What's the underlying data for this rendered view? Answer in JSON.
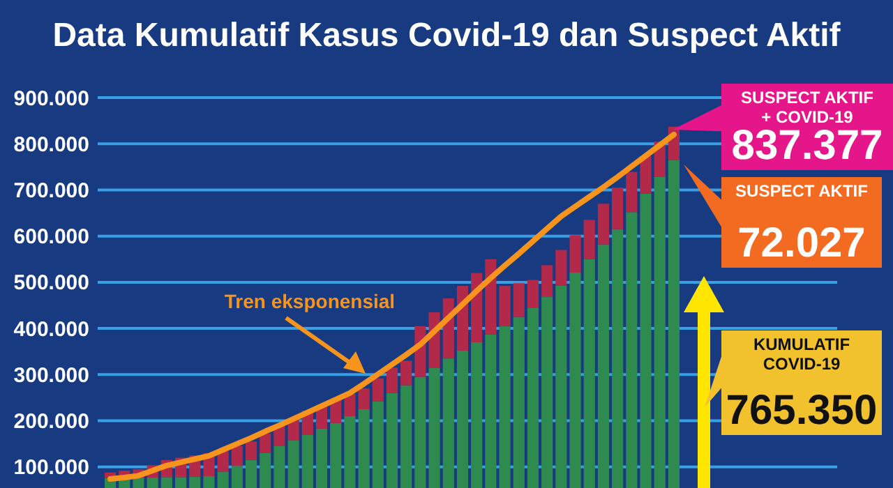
{
  "chart_data": {
    "type": "bar",
    "title": "Data Kumulatif Kasus Covid-19 dan Suspect Aktif",
    "stacked": true,
    "grid": "y",
    "tick_labels": "y",
    "categories": [
      null,
      null,
      null,
      null,
      null,
      null,
      null,
      null,
      null,
      null,
      null,
      null,
      null,
      null,
      null,
      null,
      null,
      null,
      null,
      null,
      null,
      null,
      null,
      null,
      null,
      null,
      null,
      null,
      null,
      null,
      null,
      null,
      null,
      null,
      null,
      null,
      null,
      null,
      null,
      null,
      null
    ],
    "ylim": [
      0,
      900000
    ],
    "yticks": [
      {
        "value": 100000,
        "label": "100.000"
      },
      {
        "value": 200000,
        "label": "200.000"
      },
      {
        "value": 300000,
        "label": "300.000"
      },
      {
        "value": 400000,
        "label": "400.000"
      },
      {
        "value": 500000,
        "label": "500.000"
      },
      {
        "value": 600000,
        "label": "600.000"
      },
      {
        "value": 700000,
        "label": "700.000"
      },
      {
        "value": 800000,
        "label": "800.000"
      },
      {
        "value": 900000,
        "label": "900.000"
      }
    ],
    "series": [
      {
        "color": "#2f8a4f",
        "values": [
          76000,
          76000,
          77000,
          77000,
          78000,
          78000,
          79000,
          80000,
          90000,
          102000,
          115000,
          130000,
          145000,
          158000,
          170000,
          183000,
          195000,
          210000,
          225000,
          242000,
          260000,
          277000,
          295000,
          315000,
          335000,
          352000,
          370000,
          387000,
          405000,
          425000,
          445000,
          468000,
          493000,
          521000,
          550000,
          582000,
          615000,
          652000,
          692000,
          728000,
          765000
        ]
      },
      {
        "color": "#b3294a",
        "values": [
          12000,
          16000,
          18000,
          26000,
          37000,
          42000,
          46000,
          50000,
          45000,
          43000,
          40000,
          42000,
          45000,
          48000,
          52000,
          51000,
          50000,
          48000,
          45000,
          50000,
          55000,
          53000,
          110000,
          120000,
          130000,
          140000,
          150000,
          163000,
          87000,
          73000,
          60000,
          69000,
          77000,
          81000,
          85000,
          88000,
          90000,
          87000,
          81000,
          77000,
          72000
        ]
      },
      {
        "type": "line",
        "color": "#f7941d",
        "values": [
          74000,
          77000,
          81000,
          92000,
          103000,
          110000,
          117000,
          124000,
          137000,
          150000,
          163000,
          177000,
          190000,
          204000,
          218000,
          232000,
          246000,
          260000,
          280000,
          301000,
          322000,
          343000,
          365000,
          394000,
          423000,
          452000,
          481000,
          509000,
          536000,
          562000,
          589000,
          616000,
          643000,
          664000,
          685000,
          706000,
          728000,
          751000,
          774000,
          797000,
          820000
        ]
      }
    ],
    "annotations": [
      "Tren eksponensial",
      "SUSPECT AKTIF + COVID-19",
      "837.377",
      "SUSPECT AKTIF",
      "72.027",
      "KUMULATIF COVID-19",
      "765.350"
    ]
  }
}
